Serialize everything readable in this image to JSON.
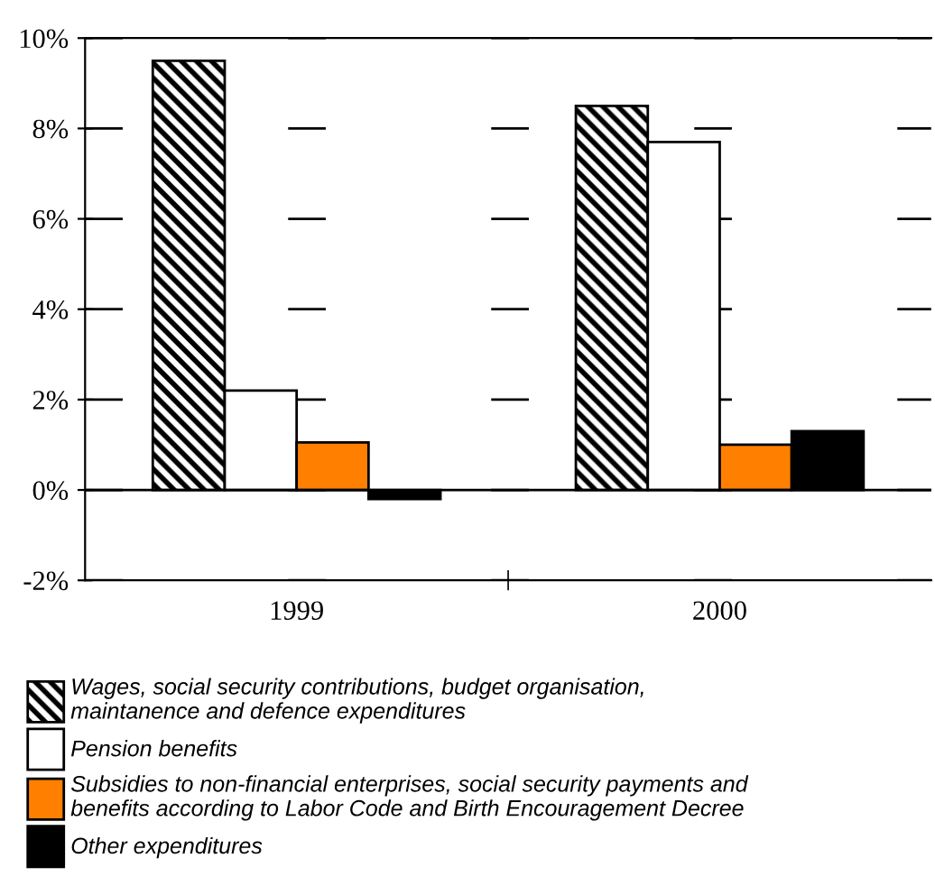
{
  "chart_data": {
    "type": "bar",
    "categories": [
      "1999",
      "2000"
    ],
    "series": [
      {
        "name": "Wages, social security contributions, budget organisation,\nmaintanence and defence expenditures",
        "color": "#000000",
        "values": [
          9.5,
          8.5
        ]
      },
      {
        "name": "Pension benefits",
        "color": "#ffffff",
        "values": [
          2.2,
          7.7
        ]
      },
      {
        "name": "Subsidies to non-financial enterprises, social security payments and\nbenefits according to Labor Code and Birth Encouragement Decree",
        "color": "#ff8000",
        "values": [
          1.05,
          1.0
        ]
      },
      {
        "name": "Other expenditures",
        "color": "#000000",
        "values": [
          -0.2,
          1.3
        ]
      }
    ],
    "ylim": [
      -2,
      10
    ],
    "yticks": [
      {
        "value": -2,
        "label": "-2%"
      },
      {
        "value": 0,
        "label": "0%"
      },
      {
        "value": 2,
        "label": "2%"
      },
      {
        "value": 4,
        "label": "4%"
      },
      {
        "value": 6,
        "label": "6%"
      },
      {
        "value": 8,
        "label": "8%"
      },
      {
        "value": 10,
        "label": "10%"
      }
    ],
    "grid": "y",
    "legend": "bottom"
  }
}
